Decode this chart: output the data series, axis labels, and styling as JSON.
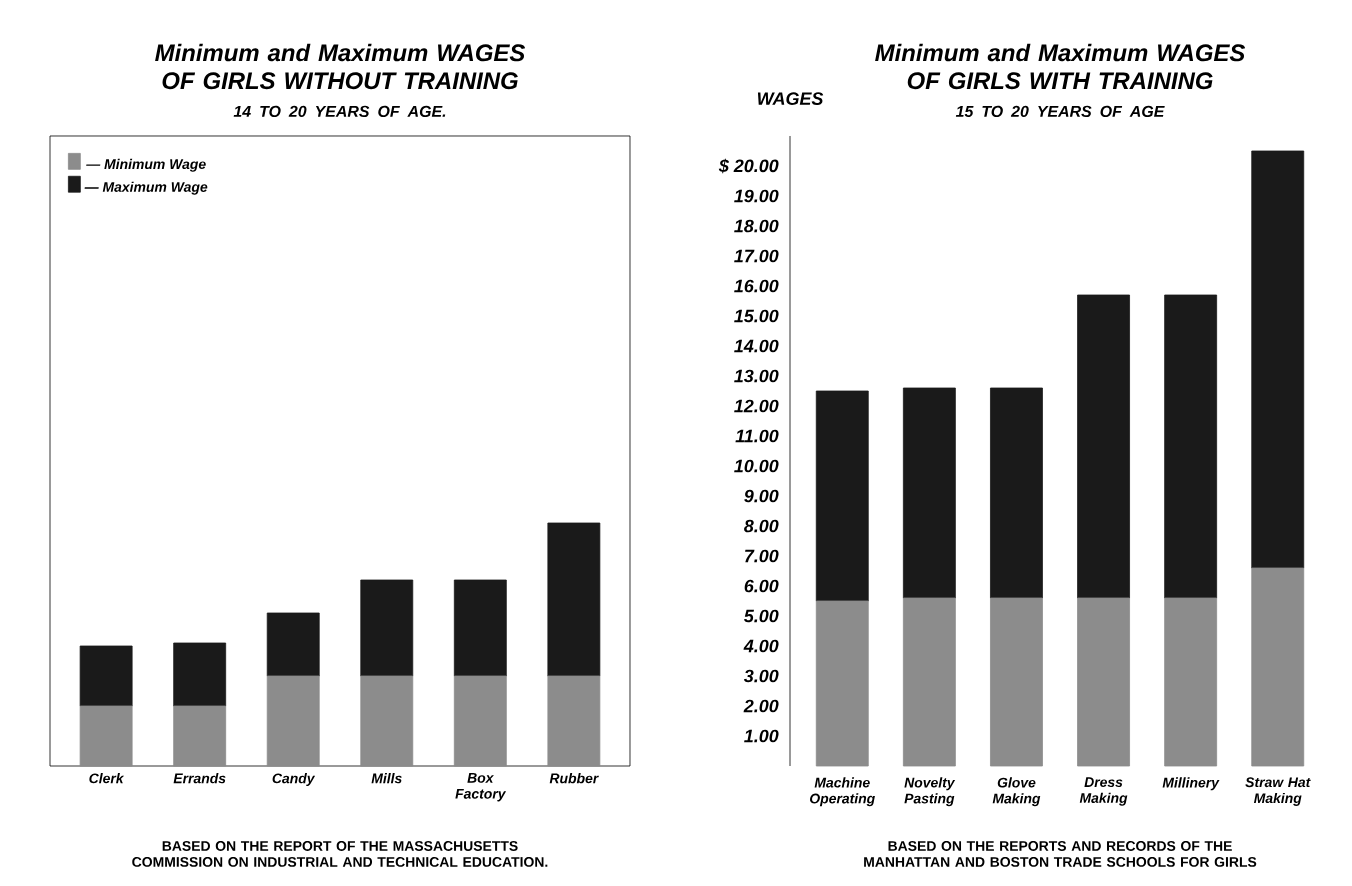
{
  "chart_data": [
    {
      "type": "bar",
      "title": "Minimum and Maximum WAGES OF GIRLS **WITHOUT** TRAINING",
      "subtitle": "14 TO 20 YEARS OF AGE.",
      "stacked": true,
      "categories": [
        "Clerk",
        "Errands",
        "Candy",
        "Mills",
        "Box Factory",
        "Rubber"
      ],
      "series": [
        {
          "name": "— Minimum Wage",
          "color": "#8c8c8c",
          "values": [
            2.0,
            2.0,
            3.0,
            3.0,
            3.0,
            3.0
          ]
        },
        {
          "name": "— Maximum Wage",
          "color": "#1a1a1a",
          "values": [
            2.0,
            2.1,
            2.1,
            3.2,
            3.2,
            5.1
          ]
        }
      ],
      "ylim": [
        0,
        21
      ],
      "tick_labels": "x",
      "legend": "top left",
      "annotations": [
        "BASED ON THE REPORT OF THE MASSACHUSETTS COMMISSION ON INDUSTRIAL AND TECHNICAL EDUCATION."
      ]
    },
    {
      "type": "bar",
      "title": "Minimum and Maximum WAGES OF GIRLS **WITH** TRAINING",
      "subtitle": "15 TO 20 YEARS OF AGE",
      "stacked": true,
      "ylabel": "WAGES",
      "categories": [
        "Machine Operating",
        "Novelty Pasting",
        "Glove Making",
        "Dress Making",
        "Millinery",
        "Straw Hat Making"
      ],
      "series": [
        {
          "color": "#8c8c8c",
          "values": [
            5.5,
            5.6,
            5.6,
            5.6,
            5.6,
            6.6
          ]
        },
        {
          "color": "#1a1a1a",
          "values": [
            7.0,
            7.0,
            7.0,
            10.1,
            10.1,
            13.9
          ]
        }
      ],
      "ylim": [
        0,
        21
      ],
      "yticks": [
        {
          "value": 1,
          "label": "1.00"
        },
        {
          "value": 2,
          "label": "2.00"
        },
        {
          "value": 3,
          "label": "3.00"
        },
        {
          "value": 4,
          "label": "4.00"
        },
        {
          "value": 5,
          "label": "5.00"
        },
        {
          "value": 6,
          "label": "6.00"
        },
        {
          "value": 7,
          "label": "7.00"
        },
        {
          "value": 8,
          "label": "8.00"
        },
        {
          "value": 9,
          "label": "9.00"
        },
        {
          "value": 10,
          "label": "10.00"
        },
        {
          "value": 11,
          "label": "11.00"
        },
        {
          "value": 12,
          "label": "12.00"
        },
        {
          "value": 13,
          "label": "13.00"
        },
        {
          "value": 14,
          "label": "14.00"
        },
        {
          "value": 15,
          "label": "15.00"
        },
        {
          "value": 16,
          "label": "16.00"
        },
        {
          "value": 17,
          "label": "17.00"
        },
        {
          "value": 18,
          "label": "18.00"
        },
        {
          "value": 19,
          "label": "19.00"
        },
        {
          "value": 20,
          "label": "$ 20.00"
        }
      ],
      "annotations": [
        "BASED ON THE REPORTS AND RECORDS OF THE MANHATTAN AND BOSTON TRADE SCHOOLS FOR GIRLS"
      ]
    }
  ]
}
